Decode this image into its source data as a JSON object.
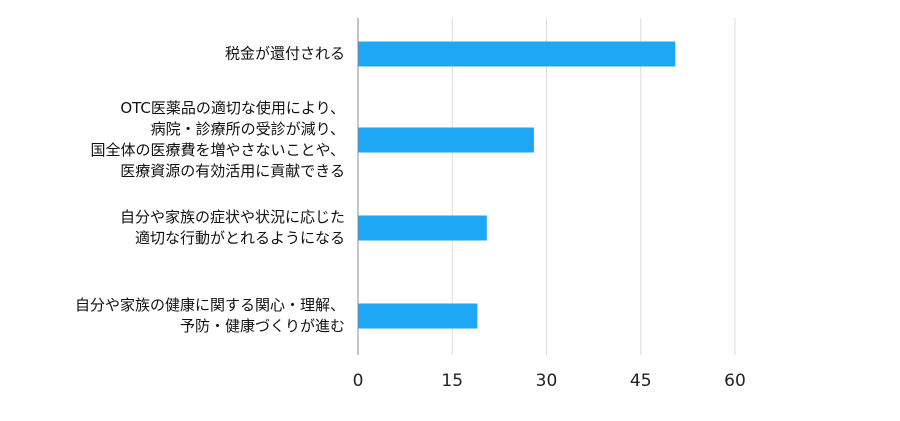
{
  "chart_data": {
    "type": "bar",
    "orientation": "horizontal",
    "categories": [
      [
        "税金が還付される"
      ],
      [
        "OTC医薬品の適切な使用により、",
        "病院・診療所の受診が減り、",
        "国全体の医療費を増やさないことや、",
        "医療資源の有効活用に貢献できる"
      ],
      [
        "自分や家族の症状や状況に応じた",
        "適切な行動がとれるようになる"
      ],
      [
        "自分や家族の健康に関する関心・理解、",
        "予防・健康づくりが進む"
      ]
    ],
    "values": [
      50.5,
      28,
      20.5,
      19
    ],
    "xlim": [
      0,
      60
    ],
    "xticks": [
      0,
      15,
      30,
      45,
      60
    ],
    "bar_color": "#1ea7f5",
    "grid": true,
    "title": "",
    "xlabel": "",
    "ylabel": ""
  }
}
